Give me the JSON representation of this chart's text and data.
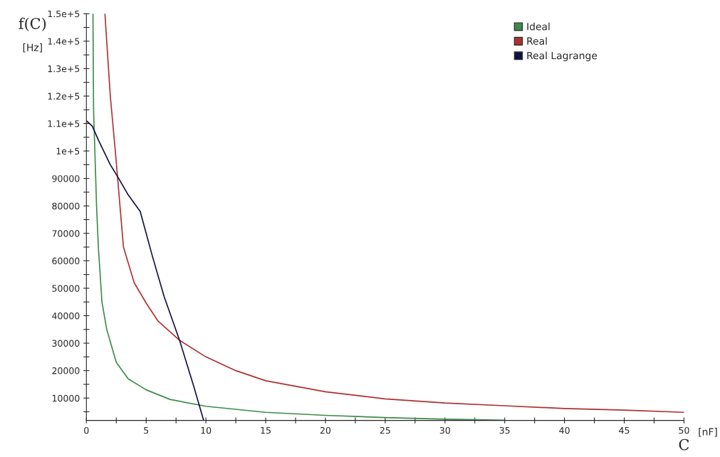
{
  "chart_data": {
    "type": "line",
    "xlabel": "C",
    "ylabel": "f(C)",
    "annotations": [
      "[Hz]",
      "[nF]"
    ],
    "xlim": [
      0,
      50
    ],
    "ylim": [
      1850,
      150000
    ],
    "xticks": [
      0,
      {
        "value": 2.5,
        "label": null
      },
      5,
      {
        "value": 7.5,
        "label": null
      },
      10,
      {
        "value": 12.5,
        "label": null
      },
      15,
      {
        "value": 17.5,
        "label": null
      },
      20,
      {
        "value": 22.5,
        "label": null
      },
      25,
      {
        "value": 27.5,
        "label": null
      },
      30,
      {
        "value": 32.5,
        "label": null
      },
      35,
      {
        "value": 37.5,
        "label": null
      },
      40,
      {
        "value": 42.5,
        "label": null
      },
      45,
      {
        "value": 47.5,
        "label": null
      },
      50
    ],
    "yticks": [
      {
        "value": 5000,
        "label": null
      },
      10000,
      {
        "value": 15000,
        "label": null
      },
      20000,
      {
        "value": 25000,
        "label": null
      },
      30000,
      {
        "value": 35000,
        "label": null
      },
      40000,
      {
        "value": 45000,
        "label": null
      },
      50000,
      {
        "value": 55000,
        "label": null
      },
      60000,
      {
        "value": 65000,
        "label": null
      },
      70000,
      {
        "value": 75000,
        "label": null
      },
      80000,
      {
        "value": 85000,
        "label": null
      },
      90000,
      {
        "value": 95000,
        "label": null
      },
      {
        "value": 100000,
        "label": "1e+5"
      },
      {
        "value": 105000,
        "label": null
      },
      {
        "value": 110000,
        "label": "1.1e+5"
      },
      {
        "value": 115000,
        "label": null
      },
      {
        "value": 120000,
        "label": "1.2e+5"
      },
      {
        "value": 125000,
        "label": null
      },
      {
        "value": 130000,
        "label": "1.3e+5"
      },
      {
        "value": 135000,
        "label": null
      },
      {
        "value": 140000,
        "label": "1.4e+5"
      },
      {
        "value": 145000,
        "label": null
      },
      {
        "value": 150000,
        "label": "1.5e+5"
      }
    ],
    "grid": false,
    "legend": "top right",
    "marker": "none",
    "line_style": "solid",
    "series": [
      {
        "name": "Ideal",
        "color": "#3d8b4a",
        "x": [
          0.55,
          0.6,
          0.85,
          1.0,
          1.3,
          1.7,
          2.5,
          3.5,
          5,
          7,
          10,
          15,
          20,
          25,
          30,
          35
        ],
        "values": [
          150000,
          115000,
          80000,
          65000,
          45000,
          35000,
          23000,
          17000,
          13000,
          9500,
          7000,
          4800,
          3700,
          2900,
          2300,
          1900
        ]
      },
      {
        "name": "Real",
        "color": "#b03030",
        "x": [
          1.55,
          2.0,
          2.5,
          3.1,
          4,
          5,
          6,
          7.8,
          10,
          12.5,
          15,
          20,
          25,
          30,
          35,
          40,
          45,
          50
        ],
        "values": [
          150000,
          120000,
          96000,
          65000,
          52000,
          44600,
          38000,
          31000,
          25000,
          20000,
          16300,
          12300,
          9700,
          8200,
          7200,
          6200,
          5600,
          4800
        ]
      },
      {
        "name": "Real Lagrange",
        "color": "#101040",
        "x": [
          0,
          0.5,
          1,
          2,
          2.7,
          3.5,
          4.5,
          5.5,
          6.5,
          7.8,
          9,
          9.8
        ],
        "values": [
          111000,
          109000,
          104000,
          95000,
          90000,
          84000,
          78000,
          62000,
          47000,
          31000,
          14000,
          2000
        ]
      }
    ]
  }
}
